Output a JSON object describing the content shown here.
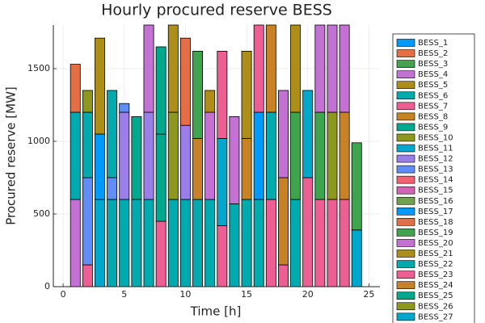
{
  "chart_data": {
    "type": "stacked-bar",
    "title": "Hourly procured reserve BESS",
    "x_label": "Time [h]",
    "y_label": "Procured reserve [MW]",
    "x": [
      1,
      2,
      3,
      4,
      5,
      6,
      7,
      8,
      9,
      10,
      11,
      12,
      13,
      14,
      15,
      16,
      17,
      18,
      19,
      20,
      21,
      22,
      23,
      24
    ],
    "xlim": [
      -0.8,
      25.9
    ],
    "xticks": [
      0,
      5,
      10,
      15,
      20,
      25
    ],
    "ylim": [
      0,
      1800
    ],
    "yticks": [
      0,
      500,
      1000,
      1500
    ],
    "grid": true,
    "legend": "right",
    "series": [
      {
        "name": "BESS_1",
        "color": "#009afa",
        "values": [
          0,
          0,
          0,
          0,
          0,
          0,
          0,
          0,
          0,
          0,
          0,
          0,
          0,
          0,
          0,
          0,
          0,
          0,
          0,
          0,
          0,
          0,
          0,
          0
        ]
      },
      {
        "name": "BESS_2",
        "color": "#e36f47",
        "values": [
          0,
          0,
          0,
          0,
          0,
          0,
          0,
          0,
          0,
          0,
          0,
          0,
          0,
          0,
          0,
          0,
          0,
          0,
          0,
          0,
          0,
          0,
          0,
          0
        ]
      },
      {
        "name": "BESS_3",
        "color": "#3ea44e",
        "values": [
          0,
          0,
          0,
          0,
          0,
          0,
          0,
          0,
          0,
          0,
          0,
          0,
          0,
          0,
          0,
          0,
          0,
          0,
          0,
          0,
          0,
          0,
          0,
          0
        ]
      },
      {
        "name": "BESS_4",
        "color": "#c371d2",
        "values": [
          600,
          0,
          0,
          0,
          0,
          0,
          0,
          0,
          0,
          0,
          0,
          0,
          0,
          0,
          0,
          0,
          0,
          0,
          0,
          0,
          0,
          0,
          0,
          0
        ]
      },
      {
        "name": "BESS_5",
        "color": "#ac8e18",
        "values": [
          0,
          0,
          0,
          0,
          0,
          0,
          0,
          0,
          0,
          0,
          0,
          0,
          0,
          0,
          0,
          0,
          0,
          0,
          0,
          0,
          0,
          0,
          0,
          0
        ]
      },
      {
        "name": "BESS_6",
        "color": "#00aaae",
        "values": [
          600,
          0,
          0,
          600,
          600,
          600,
          600,
          0,
          600,
          600,
          600,
          600,
          0,
          570,
          600,
          600,
          0,
          0,
          600,
          0,
          0,
          0,
          0,
          0
        ]
      },
      {
        "name": "BESS_7",
        "color": "#ed5e93",
        "values": [
          0,
          150,
          0,
          0,
          0,
          0,
          0,
          450,
          0,
          0,
          0,
          0,
          420,
          0,
          0,
          0,
          600,
          150,
          0,
          750,
          600,
          600,
          600,
          0
        ]
      },
      {
        "name": "BESS_8",
        "color": "#c68225",
        "values": [
          0,
          0,
          0,
          0,
          0,
          0,
          0,
          0,
          0,
          0,
          420,
          0,
          0,
          0,
          420,
          0,
          0,
          600,
          0,
          0,
          0,
          0,
          600,
          0
        ]
      },
      {
        "name": "BESS_9",
        "color": "#00a98d",
        "values": [
          0,
          0,
          0,
          0,
          0,
          570,
          0,
          600,
          0,
          0,
          0,
          0,
          0,
          0,
          0,
          0,
          0,
          0,
          0,
          0,
          0,
          0,
          0,
          0
        ]
      },
      {
        "name": "BESS_10",
        "color": "#8e971e",
        "values": [
          0,
          0,
          0,
          0,
          0,
          0,
          0,
          0,
          600,
          0,
          0,
          0,
          0,
          0,
          0,
          0,
          0,
          0,
          0,
          0,
          0,
          600,
          0,
          0
        ]
      },
      {
        "name": "BESS_11",
        "color": "#00a8cb",
        "values": [
          0,
          0,
          600,
          0,
          0,
          0,
          0,
          0,
          0,
          0,
          0,
          0,
          600,
          0,
          0,
          0,
          0,
          0,
          0,
          600,
          0,
          0,
          0,
          390
        ]
      },
      {
        "name": "BESS_12",
        "color": "#9b7fe9",
        "values": [
          0,
          0,
          0,
          0,
          600,
          0,
          600,
          0,
          0,
          510,
          0,
          0,
          0,
          0,
          0,
          0,
          0,
          0,
          0,
          0,
          0,
          0,
          0,
          0
        ]
      },
      {
        "name": "BESS_13",
        "color": "#618df6",
        "values": [
          0,
          600,
          0,
          150,
          60,
          0,
          0,
          0,
          0,
          0,
          0,
          0,
          0,
          0,
          0,
          0,
          0,
          0,
          0,
          0,
          0,
          0,
          0,
          0
        ]
      },
      {
        "name": "BESS_14",
        "color": "#f16171",
        "values": [
          0,
          0,
          0,
          0,
          0,
          0,
          0,
          0,
          0,
          0,
          0,
          0,
          0,
          0,
          0,
          0,
          0,
          0,
          0,
          0,
          0,
          0,
          0,
          0
        ]
      },
      {
        "name": "BESS_15",
        "color": "#d264b6",
        "values": [
          0,
          0,
          0,
          0,
          0,
          0,
          0,
          0,
          0,
          0,
          0,
          0,
          0,
          0,
          0,
          0,
          0,
          0,
          0,
          0,
          0,
          0,
          0,
          0
        ]
      },
      {
        "name": "BESS_16",
        "color": "#6ea14c",
        "values": [
          0,
          0,
          0,
          0,
          0,
          0,
          0,
          0,
          0,
          0,
          0,
          0,
          0,
          0,
          0,
          0,
          0,
          0,
          0,
          0,
          0,
          0,
          0,
          0
        ]
      },
      {
        "name": "BESS_17",
        "color": "#009afa",
        "values": [
          0,
          0,
          450,
          0,
          0,
          0,
          0,
          0,
          0,
          0,
          0,
          0,
          0,
          0,
          0,
          600,
          0,
          0,
          0,
          0,
          0,
          0,
          0,
          0
        ]
      },
      {
        "name": "BESS_18",
        "color": "#e36f47",
        "values": [
          330,
          0,
          0,
          0,
          0,
          0,
          0,
          0,
          0,
          600,
          0,
          0,
          0,
          0,
          0,
          0,
          0,
          0,
          0,
          0,
          0,
          0,
          0,
          0
        ]
      },
      {
        "name": "BESS_19",
        "color": "#3ea44e",
        "values": [
          0,
          0,
          0,
          0,
          0,
          0,
          0,
          0,
          0,
          0,
          600,
          0,
          0,
          0,
          0,
          0,
          0,
          0,
          600,
          0,
          600,
          0,
          0,
          600
        ]
      },
      {
        "name": "BESS_20",
        "color": "#c371d2",
        "values": [
          0,
          0,
          0,
          0,
          0,
          0,
          600,
          0,
          0,
          0,
          0,
          600,
          0,
          600,
          0,
          0,
          0,
          600,
          0,
          0,
          600,
          600,
          600,
          0
        ]
      },
      {
        "name": "BESS_21",
        "color": "#ac8e18",
        "values": [
          0,
          0,
          660,
          0,
          0,
          0,
          0,
          0,
          600,
          0,
          0,
          150,
          0,
          0,
          600,
          0,
          0,
          0,
          600,
          0,
          0,
          0,
          0,
          0
        ]
      },
      {
        "name": "BESS_22",
        "color": "#00aaae",
        "values": [
          0,
          450,
          0,
          600,
          0,
          0,
          0,
          0,
          0,
          0,
          0,
          0,
          0,
          0,
          0,
          0,
          600,
          0,
          0,
          0,
          0,
          0,
          0,
          0
        ]
      },
      {
        "name": "BESS_23",
        "color": "#ed5e93",
        "values": [
          0,
          0,
          0,
          0,
          0,
          0,
          0,
          0,
          0,
          0,
          0,
          0,
          600,
          0,
          0,
          600,
          0,
          0,
          0,
          0,
          0,
          0,
          0,
          0
        ]
      },
      {
        "name": "BESS_24",
        "color": "#c68225",
        "values": [
          0,
          0,
          0,
          0,
          0,
          0,
          0,
          0,
          0,
          0,
          0,
          0,
          0,
          0,
          0,
          0,
          600,
          0,
          0,
          0,
          0,
          0,
          0,
          0
        ]
      },
      {
        "name": "BESS_25",
        "color": "#00a98d",
        "values": [
          0,
          0,
          0,
          0,
          0,
          0,
          0,
          600,
          0,
          0,
          0,
          0,
          0,
          0,
          0,
          0,
          0,
          0,
          0,
          0,
          0,
          0,
          0,
          0
        ]
      },
      {
        "name": "BESS_26",
        "color": "#8e971e",
        "values": [
          0,
          150,
          0,
          0,
          0,
          0,
          0,
          0,
          0,
          0,
          0,
          0,
          0,
          0,
          0,
          0,
          0,
          0,
          0,
          0,
          0,
          0,
          0,
          0
        ]
      },
      {
        "name": "BESS_27",
        "color": "#00a8cb",
        "values": [
          0,
          0,
          0,
          0,
          0,
          0,
          0,
          0,
          0,
          0,
          0,
          0,
          0,
          0,
          0,
          0,
          0,
          0,
          0,
          0,
          0,
          0,
          0,
          0
        ]
      }
    ]
  }
}
